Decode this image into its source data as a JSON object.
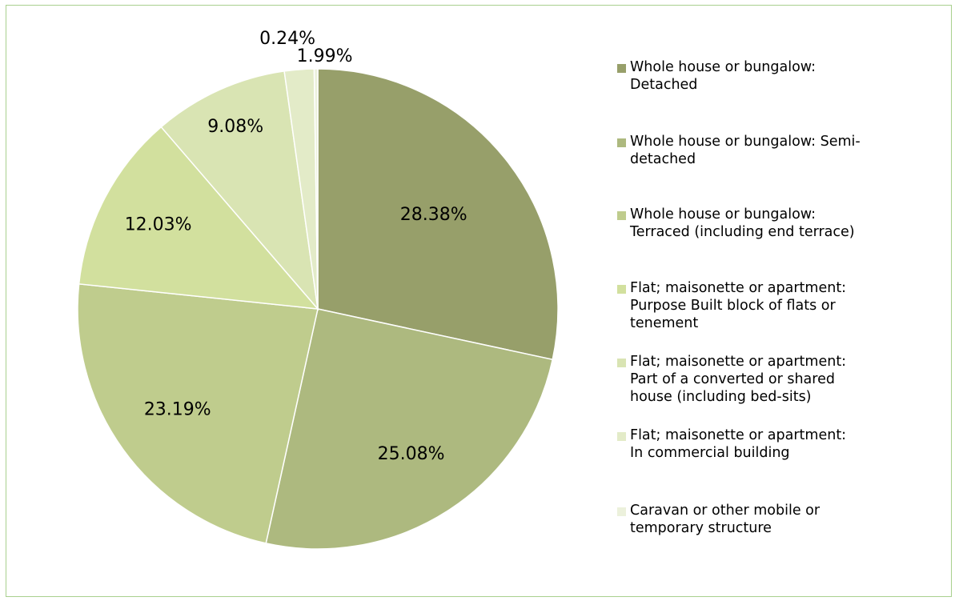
{
  "chart_data": {
    "type": "pie",
    "title": "",
    "legend_position": "right",
    "slices": [
      {
        "label": "Whole house or bungalow: Detached",
        "value": 28.38,
        "value_label": "28.38%",
        "color": "#979f6a"
      },
      {
        "label": "Whole house or bungalow: Semi-detached",
        "value": 25.08,
        "value_label": "25.08%",
        "color": "#adb97f"
      },
      {
        "label": "Whole house or bungalow: Terraced (including end terrace)",
        "value": 23.19,
        "value_label": "23.19%",
        "color": "#bfcc8d"
      },
      {
        "label": " Flat; maisonette or apartment: Purpose Built block of flats or tenement",
        "value": 12.03,
        "value_label": "12.03%",
        "color": "#d2e09e"
      },
      {
        "label": " Flat; maisonette or apartment: Part of a converted or shared house (including bed-sits)",
        "value": 9.08,
        "value_label": "9.08%",
        "color": "#d9e4b3"
      },
      {
        "label": " Flat; maisonette or apartment: In commercial building",
        "value": 1.99,
        "value_label": "1.99%",
        "color": "#e3ebc8"
      },
      {
        "label": " Caravan or other mobile or temporary structure",
        "value": 0.24,
        "value_label": "0.24%",
        "color": "#ecf1dc"
      }
    ]
  },
  "legend": {
    "items": [
      {
        "text": "Whole house or bungalow:\nDetached"
      },
      {
        "text": "Whole house or bungalow: Semi-\ndetached"
      },
      {
        "text": "Whole house or bungalow:\nTerraced (including end terrace)"
      },
      {
        "text": " Flat; maisonette or apartment:\nPurpose Built block of flats or\ntenement"
      },
      {
        "text": " Flat; maisonette or apartment:\nPart of a converted or shared\nhouse (including bed-sits)"
      },
      {
        "text": " Flat; maisonette or apartment:\nIn commercial building"
      },
      {
        "text": " Caravan or other mobile or\ntemporary structure"
      }
    ]
  }
}
